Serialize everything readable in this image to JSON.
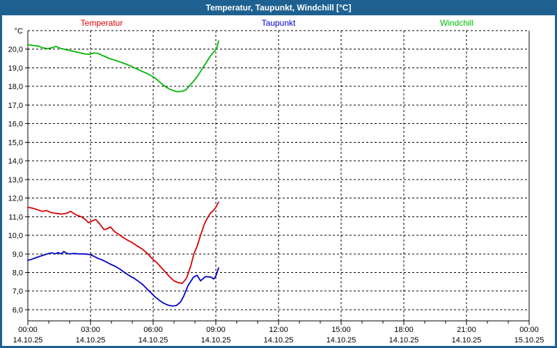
{
  "window": {
    "title": "Temperatur, Taupunkt, Windchill [°C]"
  },
  "colors": {
    "titlebar_bg": "#1e6190",
    "titlebar_text": "#ffffff",
    "window_border": "#1e6190",
    "plot_background": "#ffffff",
    "grid": "#000000",
    "axis": "#000000"
  },
  "legend": {
    "items": [
      {
        "label": "Temperatur",
        "color": "#dd0000"
      },
      {
        "label": "Taupunkt",
        "color": "#0000cc"
      },
      {
        "label": "Windchill",
        "color": "#00bb00"
      }
    ]
  },
  "chart_data": {
    "type": "line",
    "title": "Temperatur, Taupunkt, Windchill [°C]",
    "ylabel_unit": "°C",
    "grid": "dashed",
    "ylim": [
      5.4,
      21.0
    ],
    "y_grid_step": 1.0,
    "xlim_hours": [
      0,
      24
    ],
    "x_minor_step_hours": 1,
    "y_ticks": [
      {
        "v": 6,
        "label": "6,0"
      },
      {
        "v": 7,
        "label": "7,0"
      },
      {
        "v": 8,
        "label": "8,0"
      },
      {
        "v": 9,
        "label": "9,0"
      },
      {
        "v": 10,
        "label": "10,0"
      },
      {
        "v": 11,
        "label": "11,0"
      },
      {
        "v": 12,
        "label": "12,0"
      },
      {
        "v": 13,
        "label": "13,0"
      },
      {
        "v": 14,
        "label": "14,0"
      },
      {
        "v": 15,
        "label": "15,0"
      },
      {
        "v": 16,
        "label": "16,0"
      },
      {
        "v": 17,
        "label": "17,0"
      },
      {
        "v": 18,
        "label": "18,0"
      },
      {
        "v": 19,
        "label": "19,0"
      },
      {
        "v": 20,
        "label": "20,0"
      }
    ],
    "unit_tick_value": 21,
    "x_major_ticks": [
      {
        "h": 0,
        "time": "00:00",
        "date": "14.10.25"
      },
      {
        "h": 3,
        "time": "03:00",
        "date": "14.10.25"
      },
      {
        "h": 6,
        "time": "06:00",
        "date": "14.10.25"
      },
      {
        "h": 9,
        "time": "09:00",
        "date": "14.10.25"
      },
      {
        "h": 12,
        "time": "12:00",
        "date": "14.10.25"
      },
      {
        "h": 15,
        "time": "15:00",
        "date": "14.10.25"
      },
      {
        "h": 18,
        "time": "18:00",
        "date": "14.10.25"
      },
      {
        "h": 21,
        "time": "21:00",
        "date": "14.10.25"
      },
      {
        "h": 24,
        "time": "00:00",
        "date": "15.10.25"
      }
    ],
    "series": [
      {
        "name": "Temperatur",
        "color": "#d40000",
        "x": [
          0,
          0.25,
          0.5,
          0.7,
          0.9,
          1.1,
          1.35,
          1.6,
          1.85,
          2.05,
          2.3,
          2.55,
          2.75,
          2.9,
          3.1,
          3.25,
          3.45,
          3.65,
          3.8,
          3.95,
          4.15,
          4.35,
          4.6,
          4.8,
          5.0,
          5.2,
          5.45,
          5.7,
          5.95,
          6.2,
          6.4,
          6.6,
          6.8,
          7.0,
          7.2,
          7.4,
          7.6,
          7.8,
          7.95,
          8.1,
          8.27,
          8.45,
          8.63,
          8.75,
          8.85,
          9.0,
          9.13
        ],
        "y": [
          11.5,
          11.45,
          11.36,
          11.28,
          11.33,
          11.22,
          11.18,
          11.14,
          11.18,
          11.28,
          11.1,
          11.0,
          10.85,
          10.68,
          10.78,
          10.85,
          10.6,
          10.3,
          10.35,
          10.45,
          10.2,
          10.05,
          9.85,
          9.72,
          9.6,
          9.45,
          9.28,
          9.05,
          8.75,
          8.5,
          8.25,
          8.0,
          7.75,
          7.55,
          7.45,
          7.42,
          7.7,
          8.35,
          9.0,
          9.4,
          10.0,
          10.6,
          11.0,
          11.2,
          11.3,
          11.5,
          11.78
        ]
      },
      {
        "name": "Taupunkt",
        "color": "#0000cc",
        "x": [
          0,
          0.2,
          0.4,
          0.6,
          0.8,
          1.0,
          1.15,
          1.3,
          1.45,
          1.6,
          1.72,
          1.85,
          2.0,
          2.2,
          2.45,
          2.7,
          2.95,
          3.15,
          3.35,
          3.55,
          3.75,
          3.95,
          4.2,
          4.45,
          4.65,
          4.9,
          5.1,
          5.3,
          5.5,
          5.7,
          5.9,
          6.1,
          6.3,
          6.5,
          6.7,
          6.9,
          7.1,
          7.3,
          7.45,
          7.67,
          7.93,
          8.1,
          8.27,
          8.5,
          8.77,
          8.9,
          9.0,
          9.13
        ],
        "y": [
          8.65,
          8.72,
          8.8,
          8.88,
          8.95,
          9.02,
          9.06,
          9.0,
          9.07,
          9.0,
          9.13,
          9.03,
          9.0,
          9.02,
          9.0,
          9.0,
          8.97,
          8.88,
          8.76,
          8.68,
          8.57,
          8.45,
          8.32,
          8.15,
          7.98,
          7.8,
          7.68,
          7.52,
          7.35,
          7.12,
          6.9,
          6.68,
          6.5,
          6.35,
          6.25,
          6.2,
          6.22,
          6.4,
          6.7,
          7.3,
          7.75,
          7.85,
          7.55,
          7.78,
          7.75,
          7.65,
          7.8,
          8.25
        ]
      },
      {
        "name": "Windchill",
        "color": "#00b400",
        "x": [
          0,
          0.25,
          0.5,
          0.7,
          0.95,
          1.15,
          1.35,
          1.55,
          1.75,
          1.95,
          2.2,
          2.45,
          2.7,
          2.95,
          3.15,
          3.35,
          3.55,
          3.75,
          3.95,
          4.2,
          4.45,
          4.7,
          4.95,
          5.2,
          5.45,
          5.7,
          5.95,
          6.15,
          6.35,
          6.55,
          6.75,
          6.95,
          7.15,
          7.35,
          7.55,
          7.75,
          7.95,
          8.15,
          8.35,
          8.55,
          8.75,
          8.9,
          9.0,
          9.07,
          9.13
        ],
        "y": [
          20.25,
          20.2,
          20.17,
          20.08,
          20.03,
          20.08,
          20.15,
          20.05,
          20.0,
          19.95,
          19.88,
          19.82,
          19.75,
          19.72,
          19.8,
          19.78,
          19.68,
          19.58,
          19.48,
          19.4,
          19.3,
          19.2,
          19.08,
          18.95,
          18.82,
          18.7,
          18.55,
          18.4,
          18.2,
          18.02,
          17.88,
          17.78,
          17.72,
          17.73,
          17.8,
          18.05,
          18.3,
          18.6,
          18.95,
          19.3,
          19.65,
          19.85,
          20.0,
          20.15,
          20.45
        ]
      }
    ]
  }
}
